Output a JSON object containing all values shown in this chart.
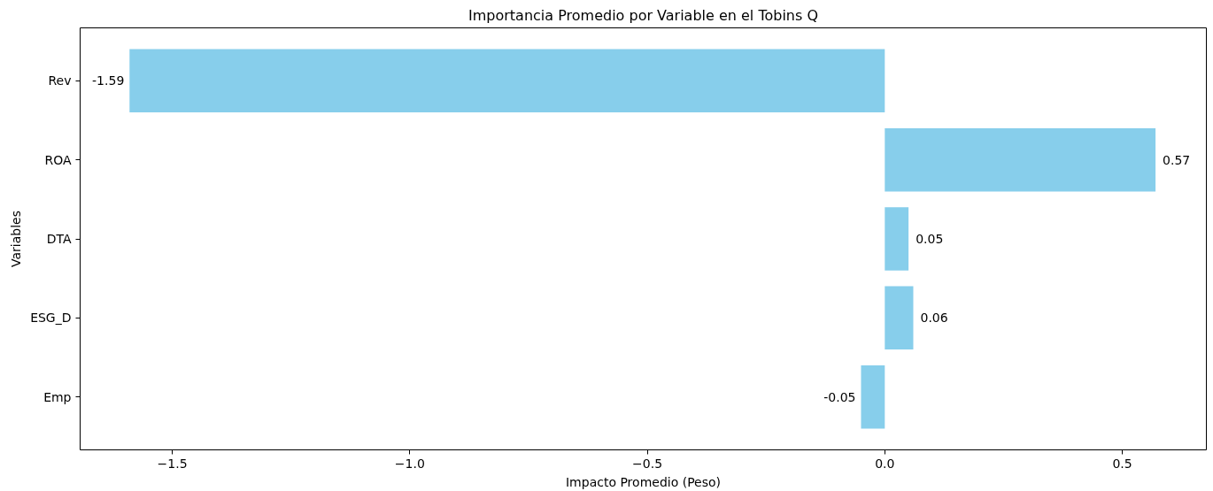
{
  "chart_data": {
    "type": "bar",
    "orientation": "horizontal",
    "title": "Importancia Promedio por Variable en el Tobins Q",
    "xlabel": "Impacto Promedio (Peso)",
    "ylabel": "Variables",
    "categories": [
      "Rev",
      "ROA",
      "DTA",
      "ESG_D",
      "Emp"
    ],
    "values": [
      -1.59,
      0.57,
      0.05,
      0.06,
      -0.05
    ],
    "color": "#87ceeb",
    "data_labels": true,
    "grid": false,
    "xlim": [
      -1.694,
      0.677
    ],
    "xticks": [
      {
        "value": -1.5,
        "label": "−1.5"
      },
      {
        "value": -1.0,
        "label": "−1.0"
      },
      {
        "value": -0.5,
        "label": "−0.5"
      },
      {
        "value": 0.0,
        "label": "0.0"
      },
      {
        "value": 0.5,
        "label": "0.5"
      }
    ]
  }
}
